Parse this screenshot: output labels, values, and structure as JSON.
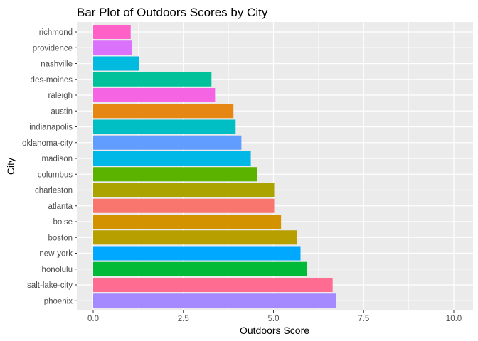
{
  "chart_data": {
    "type": "bar",
    "orientation": "horizontal",
    "title": "Bar Plot of Outdoors Scores by City",
    "xlabel": "Outdoors Score",
    "ylabel": "City",
    "xlim": [
      0,
      10
    ],
    "x_ticks": [
      "0.0",
      "2.5",
      "5.0",
      "7.5",
      "10.0"
    ],
    "x_tick_values": [
      0,
      2.5,
      5,
      7.5,
      10
    ],
    "grid": true,
    "legend": "none",
    "categories": [
      "richmond",
      "providence",
      "nashville",
      "des-moines",
      "raleigh",
      "austin",
      "indianapolis",
      "oklahoma-city",
      "madison",
      "columbus",
      "charleston",
      "atlanta",
      "boise",
      "boston",
      "new-york",
      "honolulu",
      "salt-lake-city",
      "phoenix"
    ],
    "values": [
      1.04,
      1.08,
      1.28,
      3.28,
      3.38,
      3.89,
      3.95,
      4.11,
      4.37,
      4.54,
      5.02,
      5.02,
      5.21,
      5.66,
      5.75,
      5.93,
      6.64,
      6.73
    ],
    "colors": [
      "#FF61C9",
      "#DB72FB",
      "#00BAE0",
      "#00C19A",
      "#F564E3",
      "#E68613",
      "#00BFC4",
      "#619CFF",
      "#00B8E7",
      "#5BB300",
      "#ABA300",
      "#F8766D",
      "#D39200",
      "#B79F00",
      "#00A9FF",
      "#00BA38",
      "#FF6C91",
      "#A58AFF"
    ]
  }
}
